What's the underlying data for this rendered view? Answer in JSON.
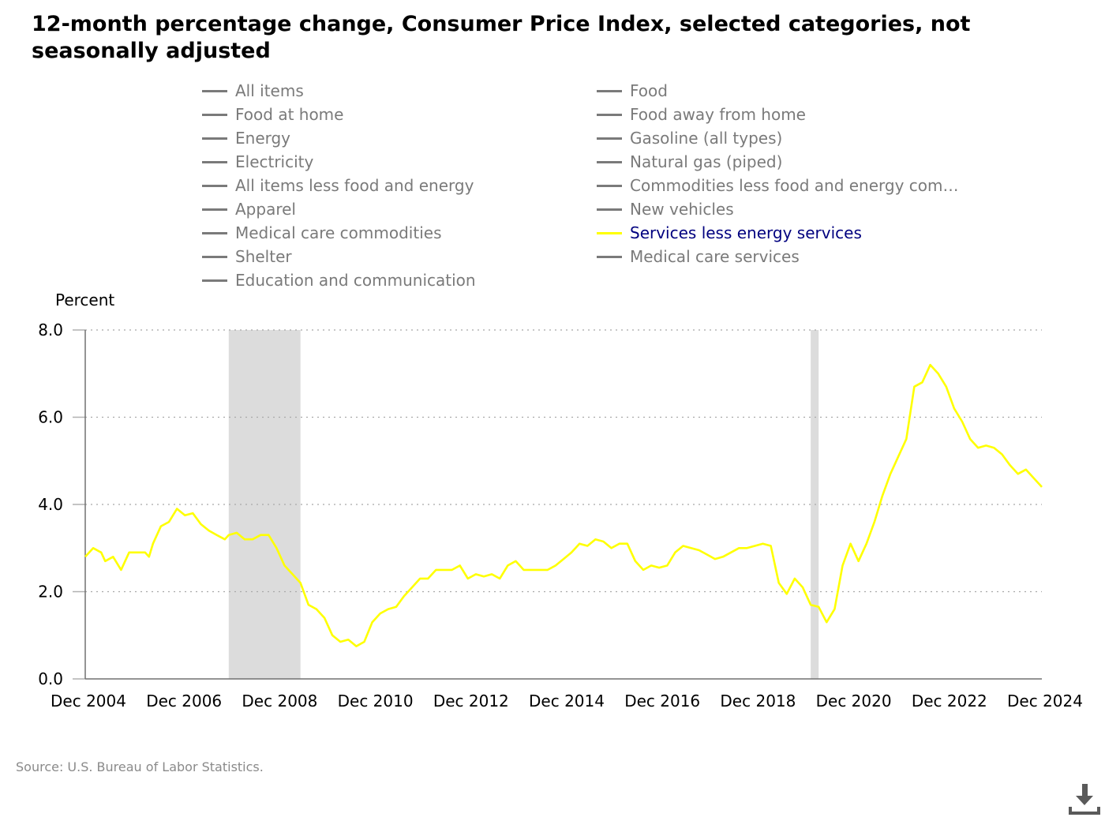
{
  "title": "12-month percentage change, Consumer Price Index, selected categories, not seasonally adjusted",
  "legend": {
    "items": [
      {
        "label": "All items",
        "active": false
      },
      {
        "label": "Food",
        "active": false
      },
      {
        "label": "Food at home",
        "active": false
      },
      {
        "label": "Food away from home",
        "active": false
      },
      {
        "label": "Energy",
        "active": false
      },
      {
        "label": "Gasoline (all types)",
        "active": false
      },
      {
        "label": "Electricity",
        "active": false
      },
      {
        "label": "Natural gas (piped)",
        "active": false
      },
      {
        "label": "All items less food and energy",
        "active": false
      },
      {
        "label": "Commodities less food and energy com…",
        "active": false
      },
      {
        "label": "Apparel",
        "active": false
      },
      {
        "label": "New vehicles",
        "active": false
      },
      {
        "label": "Medical care commodities",
        "active": false
      },
      {
        "label": "Services less energy services",
        "active": true
      },
      {
        "label": "Shelter",
        "active": false
      },
      {
        "label": "Medical care services",
        "active": false
      },
      {
        "label": "Education and communication",
        "active": false
      }
    ]
  },
  "source": "Source: U.S. Bureau of Labor Statistics.",
  "icons": {
    "download": "download-icon"
  },
  "colors": {
    "active_series": "#ffff00",
    "recession_shading": "#dcdcdc",
    "inactive_legend": "#7a7a7a",
    "active_legend_text": "#00007f"
  },
  "chart_data": {
    "type": "line",
    "ylabel": "Percent",
    "ylim": [
      0,
      8
    ],
    "yticks": [
      "0.0",
      "2.0",
      "4.0",
      "6.0",
      "8.0"
    ],
    "xticks": [
      "Dec 2004",
      "Dec 2006",
      "Dec 2008",
      "Dec 2010",
      "Dec 2012",
      "Dec 2014",
      "Dec 2016",
      "Dec 2018",
      "Dec 2020",
      "Dec 2022",
      "Dec 2024"
    ],
    "xlim": [
      "2004-12",
      "2024-12"
    ],
    "grid": "horizontal dotted",
    "recessions": [
      [
        "2007-12",
        "2009-06"
      ],
      [
        "2020-02",
        "2020-04"
      ]
    ],
    "series": [
      {
        "name": "Services less energy services",
        "color": "#ffff00",
        "points": [
          [
            "2004-12",
            2.8
          ],
          [
            "2005-02",
            3.0
          ],
          [
            "2005-04",
            2.9
          ],
          [
            "2005-05",
            2.7
          ],
          [
            "2005-07",
            2.8
          ],
          [
            "2005-09",
            2.5
          ],
          [
            "2005-11",
            2.9
          ],
          [
            "2006-01",
            2.9
          ],
          [
            "2006-03",
            2.9
          ],
          [
            "2006-04",
            2.8
          ],
          [
            "2006-05",
            3.1
          ],
          [
            "2006-07",
            3.5
          ],
          [
            "2006-09",
            3.6
          ],
          [
            "2006-11",
            3.9
          ],
          [
            "2007-01",
            3.75
          ],
          [
            "2007-03",
            3.8
          ],
          [
            "2007-05",
            3.55
          ],
          [
            "2007-07",
            3.4
          ],
          [
            "2007-09",
            3.3
          ],
          [
            "2007-11",
            3.2
          ],
          [
            "2007-12",
            3.3
          ],
          [
            "2008-02",
            3.35
          ],
          [
            "2008-04",
            3.2
          ],
          [
            "2008-06",
            3.2
          ],
          [
            "2008-08",
            3.3
          ],
          [
            "2008-10",
            3.3
          ],
          [
            "2008-12",
            3.0
          ],
          [
            "2009-02",
            2.6
          ],
          [
            "2009-04",
            2.4
          ],
          [
            "2009-06",
            2.2
          ],
          [
            "2009-08",
            1.7
          ],
          [
            "2009-10",
            1.6
          ],
          [
            "2009-12",
            1.4
          ],
          [
            "2010-02",
            1.0
          ],
          [
            "2010-04",
            0.85
          ],
          [
            "2010-06",
            0.9
          ],
          [
            "2010-08",
            0.75
          ],
          [
            "2010-10",
            0.85
          ],
          [
            "2010-12",
            1.3
          ],
          [
            "2011-02",
            1.5
          ],
          [
            "2011-04",
            1.6
          ],
          [
            "2011-06",
            1.65
          ],
          [
            "2011-08",
            1.9
          ],
          [
            "2011-10",
            2.1
          ],
          [
            "2011-12",
            2.3
          ],
          [
            "2012-02",
            2.3
          ],
          [
            "2012-04",
            2.5
          ],
          [
            "2012-06",
            2.5
          ],
          [
            "2012-08",
            2.5
          ],
          [
            "2012-10",
            2.6
          ],
          [
            "2012-12",
            2.3
          ],
          [
            "2013-02",
            2.4
          ],
          [
            "2013-04",
            2.35
          ],
          [
            "2013-06",
            2.4
          ],
          [
            "2013-08",
            2.3
          ],
          [
            "2013-10",
            2.6
          ],
          [
            "2013-12",
            2.7
          ],
          [
            "2014-02",
            2.5
          ],
          [
            "2014-04",
            2.5
          ],
          [
            "2014-06",
            2.5
          ],
          [
            "2014-08",
            2.5
          ],
          [
            "2014-10",
            2.6
          ],
          [
            "2014-12",
            2.75
          ],
          [
            "2015-02",
            2.9
          ],
          [
            "2015-04",
            3.1
          ],
          [
            "2015-06",
            3.05
          ],
          [
            "2015-08",
            3.2
          ],
          [
            "2015-10",
            3.15
          ],
          [
            "2015-12",
            3.0
          ],
          [
            "2016-02",
            3.1
          ],
          [
            "2016-04",
            3.1
          ],
          [
            "2016-06",
            2.7
          ],
          [
            "2016-08",
            2.5
          ],
          [
            "2016-10",
            2.6
          ],
          [
            "2016-12",
            2.55
          ],
          [
            "2017-02",
            2.6
          ],
          [
            "2017-04",
            2.9
          ],
          [
            "2017-06",
            3.05
          ],
          [
            "2017-08",
            3.0
          ],
          [
            "2017-10",
            2.95
          ],
          [
            "2017-12",
            2.85
          ],
          [
            "2018-02",
            2.75
          ],
          [
            "2018-04",
            2.8
          ],
          [
            "2018-06",
            2.9
          ],
          [
            "2018-08",
            3.0
          ],
          [
            "2018-10",
            3.0
          ],
          [
            "2018-12",
            3.05
          ],
          [
            "2019-02",
            3.1
          ],
          [
            "2019-04",
            3.05
          ],
          [
            "2019-06",
            2.2
          ],
          [
            "2019-08",
            1.95
          ],
          [
            "2019-10",
            2.3
          ],
          [
            "2019-12",
            2.1
          ],
          [
            "2020-02",
            1.7
          ],
          [
            "2020-04",
            1.65
          ],
          [
            "2020-06",
            1.3
          ],
          [
            "2020-08",
            1.6
          ],
          [
            "2020-10",
            2.6
          ],
          [
            "2020-12",
            3.1
          ],
          [
            "2021-02",
            2.7
          ],
          [
            "2021-04",
            3.1
          ],
          [
            "2021-06",
            3.6
          ],
          [
            "2021-08",
            4.2
          ],
          [
            "2021-10",
            4.7
          ],
          [
            "2021-12",
            5.1
          ],
          [
            "2022-02",
            5.5
          ],
          [
            "2022-04",
            6.7
          ],
          [
            "2022-06",
            6.8
          ],
          [
            "2022-08",
            7.2
          ],
          [
            "2022-10",
            7.0
          ],
          [
            "2022-12",
            6.7
          ],
          [
            "2023-02",
            6.2
          ],
          [
            "2023-04",
            5.9
          ],
          [
            "2023-06",
            5.5
          ],
          [
            "2023-08",
            5.3
          ],
          [
            "2023-10",
            5.35
          ],
          [
            "2023-12",
            5.3
          ],
          [
            "2024-02",
            5.15
          ],
          [
            "2024-04",
            4.9
          ],
          [
            "2024-06",
            4.7
          ],
          [
            "2024-08",
            4.8
          ],
          [
            "2024-10",
            4.6
          ],
          [
            "2024-12",
            4.4
          ]
        ]
      }
    ]
  }
}
